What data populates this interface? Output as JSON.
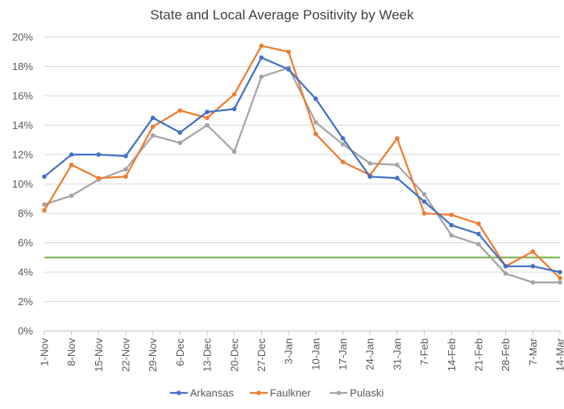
{
  "chart_data": {
    "type": "line",
    "title": "State and Local Average Positivity by Week",
    "xlabel": "",
    "ylabel": "",
    "ylim": [
      0,
      20
    ],
    "yticks": [
      "0%",
      "2%",
      "4%",
      "6%",
      "8%",
      "10%",
      "12%",
      "14%",
      "16%",
      "18%",
      "20%"
    ],
    "ytick_values": [
      0,
      2,
      4,
      6,
      8,
      10,
      12,
      14,
      16,
      18,
      20
    ],
    "grid": true,
    "legend_position": "bottom",
    "categories": [
      "1-Nov",
      "8-Nov",
      "15-Nov",
      "22-Nov",
      "29-Nov",
      "6-Dec",
      "13-Dec",
      "20-Dec",
      "27-Dec",
      "3-Jan",
      "10-Jan",
      "17-Jan",
      "24-Jan",
      "31-Jan",
      "7-Feb",
      "14-Feb",
      "21-Feb",
      "28-Feb",
      "7-Mar",
      "14-Mar"
    ],
    "series": [
      {
        "name": "Arkansas",
        "color": "#4472C4",
        "values": [
          10.5,
          12.0,
          12.0,
          11.9,
          14.5,
          13.5,
          14.9,
          15.1,
          18.6,
          17.8,
          15.8,
          13.1,
          10.5,
          10.4,
          8.8,
          7.2,
          6.6,
          4.4,
          4.4,
          4.0
        ]
      },
      {
        "name": "Faulkner",
        "color": "#ED7D31",
        "values": [
          8.2,
          11.3,
          10.4,
          10.5,
          13.9,
          15.0,
          14.5,
          16.1,
          19.4,
          19.0,
          13.4,
          11.5,
          10.6,
          13.1,
          8.0,
          7.9,
          7.3,
          4.4,
          5.4,
          3.6
        ]
      },
      {
        "name": "Pulaski",
        "color": "#A5A5A5",
        "values": [
          8.6,
          9.2,
          10.3,
          11.0,
          13.3,
          12.8,
          14.0,
          12.2,
          17.3,
          17.9,
          14.2,
          12.7,
          11.4,
          11.3,
          9.3,
          6.5,
          5.9,
          3.9,
          3.3,
          3.3
        ]
      }
    ],
    "reference_lines": [
      {
        "value": 5,
        "color": "#70AD47"
      }
    ]
  }
}
